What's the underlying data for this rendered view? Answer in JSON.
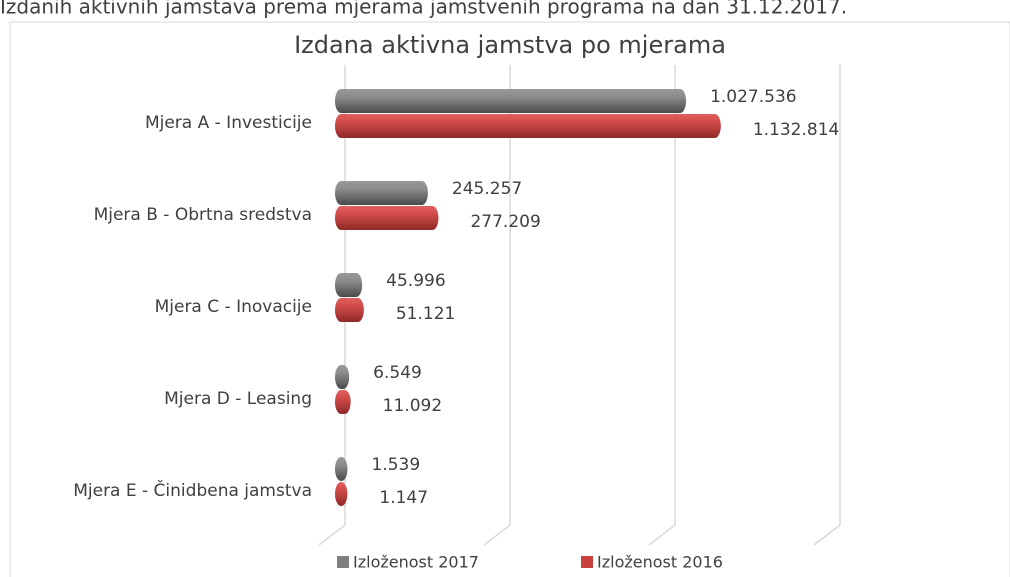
{
  "chart_data": {
    "type": "bar",
    "subtitle": "Izdanih aktivnih jamstava prema mjerama jamstvenih programa na dan 31.12.2017.",
    "title": "Izdana aktivna jamstva po mjerama",
    "categories": [
      "Mjera A - Investicije",
      "Mjera B - Obrtna sredstva",
      "Mjera C - Inovacije",
      "Mjera D - Leasing",
      "Mjera E - Činidbena jamstva"
    ],
    "series": [
      {
        "name": "Izloženost 2017",
        "color": "#7f7f7f",
        "values": [
          1027536,
          245257,
          45996,
          6549,
          1539
        ],
        "value_labels": [
          "1.027.536",
          "245.257",
          "45.996",
          "6.549",
          "1.539"
        ]
      },
      {
        "name": "Izloženost 2016",
        "color": "#c9413e",
        "values": [
          1132814,
          277209,
          51121,
          11092,
          1147
        ],
        "value_labels": [
          "1.132.814",
          "277.209",
          "51.121",
          "11.092",
          "1.147"
        ]
      }
    ],
    "xlim": [
      0,
      1500000
    ],
    "xticks": [
      0,
      500000,
      1000000,
      1500000
    ],
    "grid": true
  }
}
